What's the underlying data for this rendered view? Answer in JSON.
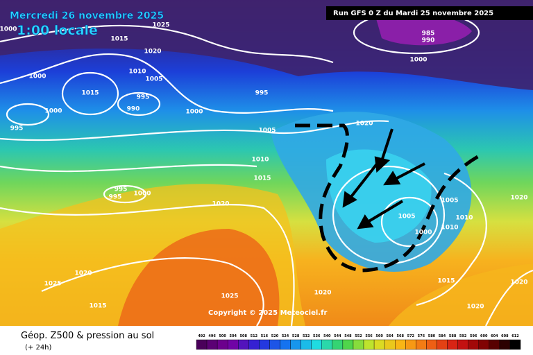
{
  "header": {
    "date": "Mercredi 26 novembre 2025",
    "time": "1:00 locale",
    "run": "Run GFS 0 Z du Mardi 25 novembre 2025"
  },
  "isobar_labels": [
    1000,
    1025,
    1015,
    1020,
    1010,
    1005,
    1000,
    1015,
    995,
    990,
    1000,
    1000,
    995,
    995,
    1005,
    1020,
    1010,
    1015,
    995,
    995,
    1000,
    1020,
    985,
    990,
    1000,
    1005,
    1005,
    1000,
    1010,
    1010,
    1020,
    1015,
    1020,
    1025,
    1025,
    1020,
    1015,
    1020,
    1020
  ],
  "copyright": "Copyright © 2025 Meteociel.fr",
  "legend": {
    "title": "Géop. Z500 & pression au sol",
    "subtitle": "(+ 24h)",
    "scale": [
      492,
      496,
      500,
      504,
      508,
      512,
      516,
      520,
      524,
      528,
      532,
      536,
      540,
      544,
      548,
      552,
      556,
      560,
      564,
      568,
      572,
      576,
      580,
      584,
      588,
      592,
      596,
      600,
      604,
      608,
      612
    ]
  }
}
